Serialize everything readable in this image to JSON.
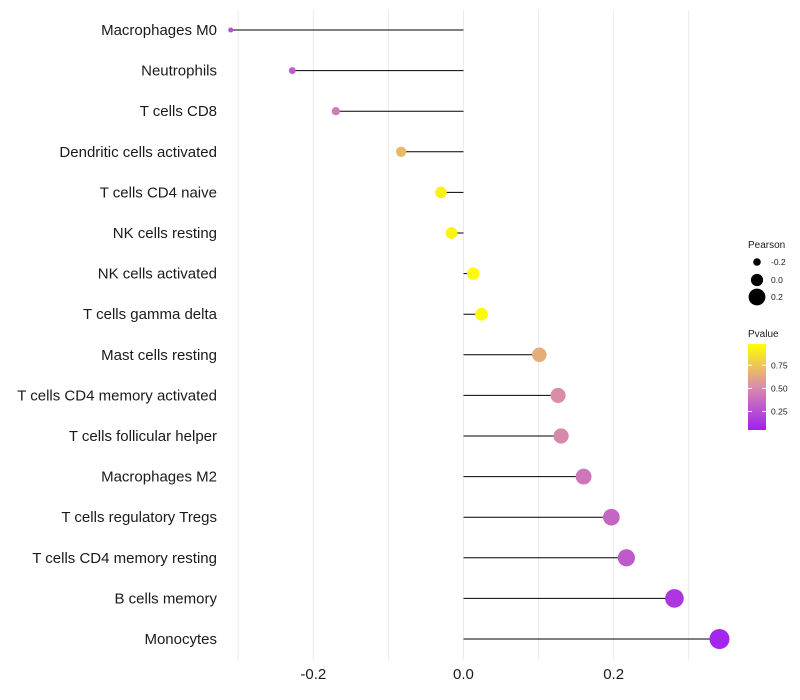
{
  "chart_data": {
    "type": "lollipop",
    "title": "",
    "xlabel": "",
    "ylabel": "",
    "xlim": [
      -0.315,
      0.355
    ],
    "x_ticks": [
      -0.2,
      0.0,
      0.2
    ],
    "x_tick_labels": [
      "-0.2",
      "0.0",
      "0.2"
    ],
    "grid": true,
    "categories": [
      "Macrophages M0",
      "Neutrophils",
      "T cells CD8",
      "Dendritic cells activated",
      "T cells CD4 naive",
      "NK cells resting",
      "NK cells activated",
      "T cells gamma delta",
      "Mast cells resting",
      "T cells CD4 memory activated",
      "T cells follicular helper",
      "Macrophages M2",
      "T cells regulatory  Tregs ",
      "T cells CD4 memory resting",
      "B cells memory",
      "Monocytes"
    ],
    "values": [
      -0.31,
      -0.228,
      -0.17,
      -0.083,
      -0.03,
      -0.016,
      0.013,
      0.024,
      0.101,
      0.126,
      0.13,
      0.16,
      0.197,
      0.217,
      0.281,
      0.341
    ],
    "pvalues": [
      0.25,
      0.3,
      0.45,
      0.7,
      0.92,
      0.93,
      0.97,
      0.96,
      0.65,
      0.52,
      0.5,
      0.42,
      0.35,
      0.3,
      0.15,
      0.08
    ],
    "legend_size": {
      "title": "Pearson",
      "labels": [
        "-0.2",
        "0.0",
        "0.2"
      ],
      "values": [
        -0.2,
        0.0,
        0.2
      ]
    },
    "legend_color": {
      "title": "Pvalue",
      "labels": [
        "0.75",
        "0.50",
        "0.25"
      ],
      "values": [
        0.75,
        0.5,
        0.25
      ],
      "range": [
        0.05,
        0.98
      ],
      "low_color": "#a020f0",
      "mid_color": "#d98cab",
      "high_color": "#ffff00"
    },
    "stem_color": "#000000",
    "grid_color": "#ebebeb"
  }
}
